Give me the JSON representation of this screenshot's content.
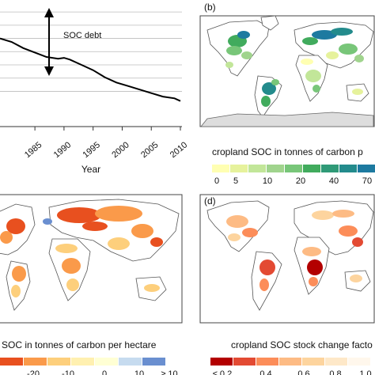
{
  "chart_data": [
    {
      "type": "line",
      "xlabel": "Year",
      "x_ticks": [
        "1985",
        "1990",
        "1995",
        "2000",
        "2005",
        "2010"
      ],
      "annotation": "SOC debt",
      "grid": true,
      "series": [
        {
          "x": [
            1979,
            1981,
            1983,
            1985,
            1987,
            1989,
            1990,
            1991,
            1993,
            1995,
            1997,
            1999,
            2001,
            2003,
            2005,
            2007,
            2009,
            2010
          ],
          "y": [
            100,
            99.6,
            98.9,
            98.4,
            97.9,
            97.7,
            97.8,
            97.6,
            97.0,
            96.4,
            95.6,
            95.0,
            94.6,
            94.2,
            93.8,
            93.4,
            93.2,
            92.9
          ]
        }
      ]
    },
    {
      "type": "heatmap",
      "panel_label": "(b)",
      "legend_title": "cropland SOC in tonnes of carbon p",
      "legend_labels": [
        "0",
        "5",
        "10",
        "20",
        "40",
        "70"
      ],
      "legend_colors": [
        "#ffffb2",
        "#e6f29c",
        "#c2e699",
        "#a0d48d",
        "#78c679",
        "#41ab5d",
        "#2f9a77",
        "#238b8c",
        "#1d7aa0"
      ]
    },
    {
      "type": "heatmap",
      "panel_label": "",
      "legend_title": "SOC in tonnes of carbon per hectare",
      "legend_labels": [
        "-20",
        "-10",
        "0",
        "10",
        "≥ 10"
      ],
      "legend_colors": [
        "#e8501f",
        "#fa9a4a",
        "#fdcf7c",
        "#fff0b0",
        "#ffffd4",
        "#c6dbef",
        "#6a8fd0"
      ]
    },
    {
      "type": "heatmap",
      "panel_label": "(d)",
      "legend_title": "cropland SOC stock change facto",
      "legend_labels": [
        "≤ 0.2",
        "0.4",
        "0.6",
        "0.8",
        "1.0"
      ],
      "legend_colors": [
        "#b30000",
        "#e34a33",
        "#fc8d59",
        "#fdbb84",
        "#fdd49e",
        "#fee8c8",
        "#fff7ec"
      ]
    }
  ]
}
